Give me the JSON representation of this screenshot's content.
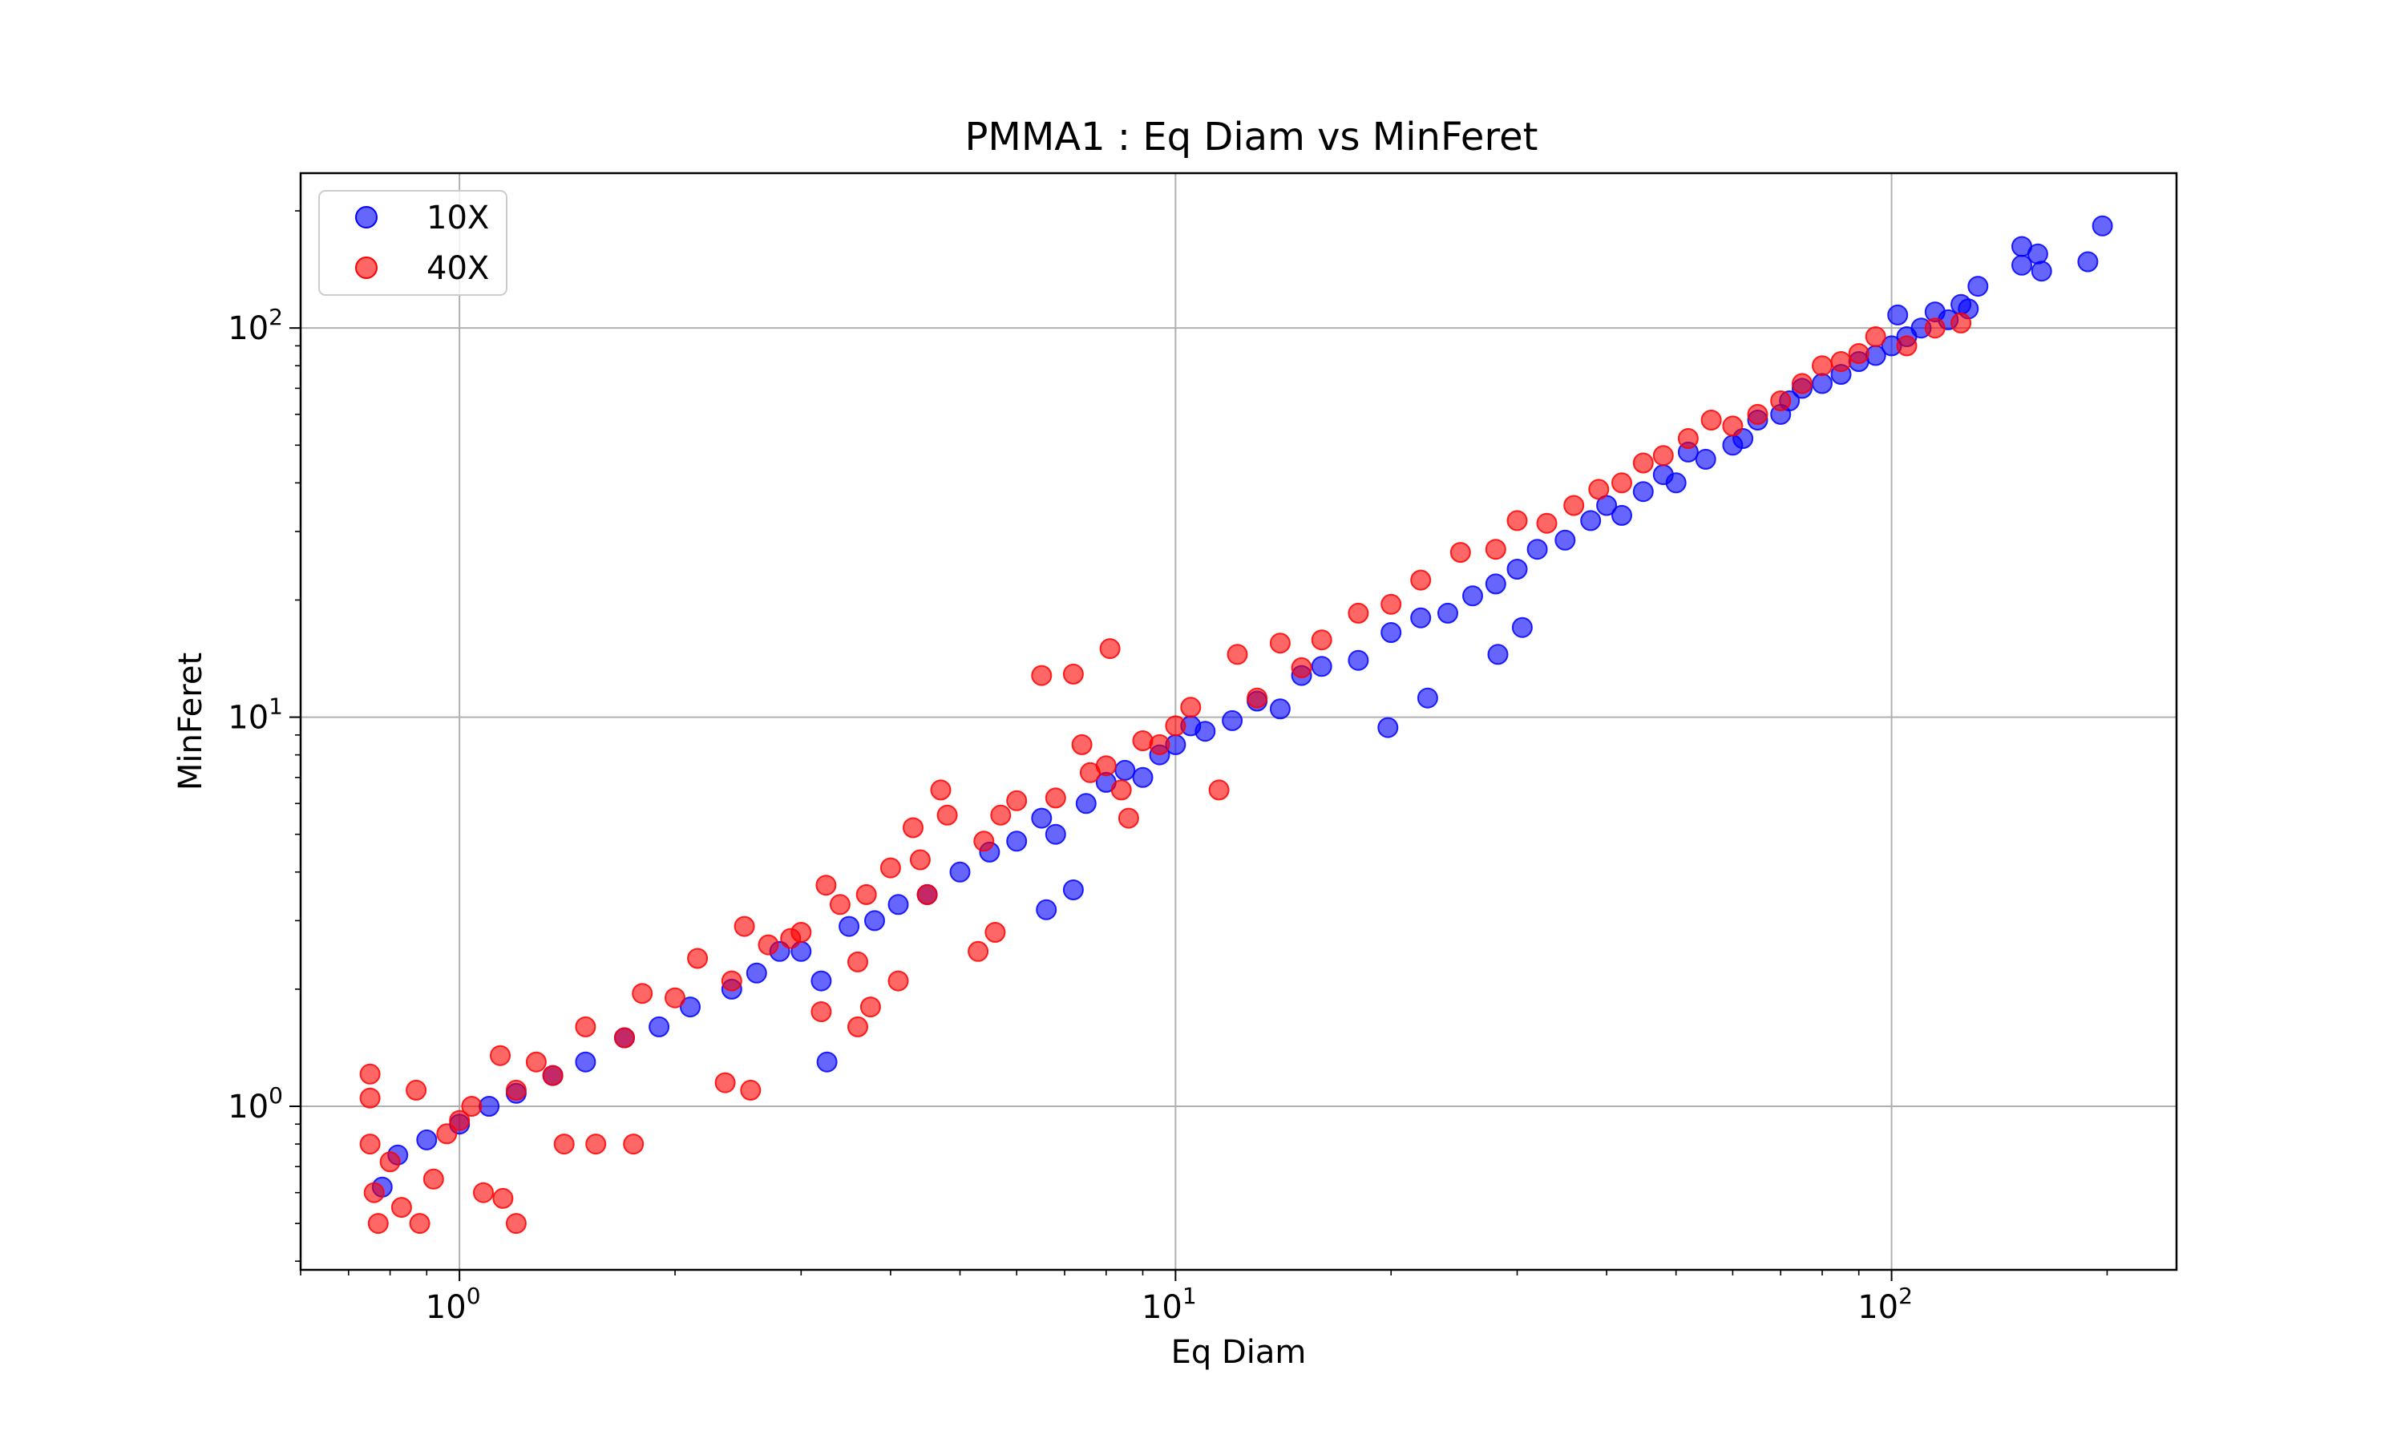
{
  "chart_data": {
    "type": "scatter",
    "title": "PMMA1 : Eq Diam vs MinFeret",
    "xlabel": "Eq Diam",
    "ylabel": "MinFeret",
    "xscale": "log",
    "yscale": "log",
    "xlim": [
      0.6,
      250
    ],
    "ylim": [
      0.38,
      250
    ],
    "grid": true,
    "legend_position": "top-left",
    "x_ticks": [
      {
        "value": 1,
        "base": "10",
        "exp": "0"
      },
      {
        "value": 10,
        "base": "10",
        "exp": "1"
      },
      {
        "value": 100,
        "base": "10",
        "exp": "2"
      }
    ],
    "y_ticks": [
      {
        "value": 1,
        "base": "10",
        "exp": "0"
      },
      {
        "value": 10,
        "base": "10",
        "exp": "1"
      },
      {
        "value": 100,
        "base": "10",
        "exp": "2"
      }
    ],
    "series": [
      {
        "name": "10X",
        "color": "#0000ff",
        "points": [
          [
            0.78,
            0.62
          ],
          [
            0.82,
            0.75
          ],
          [
            0.9,
            0.82
          ],
          [
            1.0,
            0.9
          ],
          [
            1.1,
            1.0
          ],
          [
            1.2,
            1.08
          ],
          [
            1.35,
            1.2
          ],
          [
            1.5,
            1.3
          ],
          [
            1.7,
            1.5
          ],
          [
            1.9,
            1.6
          ],
          [
            2.1,
            1.8
          ],
          [
            2.4,
            2.0
          ],
          [
            2.6,
            2.2
          ],
          [
            2.8,
            2.5
          ],
          [
            3.0,
            2.5
          ],
          [
            3.2,
            2.1
          ],
          [
            3.26,
            1.3
          ],
          [
            3.5,
            2.9
          ],
          [
            3.8,
            3.0
          ],
          [
            4.1,
            3.3
          ],
          [
            4.5,
            3.5
          ],
          [
            5.0,
            4.0
          ],
          [
            5.5,
            4.5
          ],
          [
            6.0,
            4.8
          ],
          [
            6.5,
            5.5
          ],
          [
            6.6,
            3.2
          ],
          [
            6.8,
            5.0
          ],
          [
            7.2,
            3.6
          ],
          [
            7.5,
            6.0
          ],
          [
            8.0,
            6.8
          ],
          [
            8.5,
            7.3
          ],
          [
            9.0,
            7.0
          ],
          [
            9.5,
            8.0
          ],
          [
            10.0,
            8.5
          ],
          [
            10.5,
            9.5
          ],
          [
            11.0,
            9.2
          ],
          [
            12.0,
            9.8
          ],
          [
            13.0,
            11.0
          ],
          [
            14.0,
            10.5
          ],
          [
            15.0,
            12.8
          ],
          [
            16.0,
            13.5
          ],
          [
            18.0,
            14.0
          ],
          [
            19.8,
            9.4
          ],
          [
            20.0,
            16.5
          ],
          [
            22.0,
            18.0
          ],
          [
            22.5,
            11.2
          ],
          [
            24.0,
            18.5
          ],
          [
            26.0,
            20.5
          ],
          [
            28.0,
            22.0
          ],
          [
            28.2,
            14.5
          ],
          [
            30.0,
            24.0
          ],
          [
            30.5,
            17.0
          ],
          [
            32.0,
            27.0
          ],
          [
            35.0,
            28.5
          ],
          [
            38.0,
            32.0
          ],
          [
            40.0,
            35.0
          ],
          [
            42.0,
            33.0
          ],
          [
            45.0,
            38.0
          ],
          [
            48.0,
            42.0
          ],
          [
            50.0,
            40.0
          ],
          [
            52.0,
            48.0
          ],
          [
            55.0,
            46.0
          ],
          [
            60.0,
            50.0
          ],
          [
            62.0,
            52.0
          ],
          [
            65.0,
            58.0
          ],
          [
            70.0,
            60.0
          ],
          [
            72.0,
            65.0
          ],
          [
            75.0,
            70.0
          ],
          [
            80.0,
            72.0
          ],
          [
            85.0,
            76.0
          ],
          [
            90.0,
            82.0
          ],
          [
            95.0,
            85.0
          ],
          [
            100.0,
            90.0
          ],
          [
            102.0,
            108.0
          ],
          [
            105.0,
            95.0
          ],
          [
            110.0,
            100.0
          ],
          [
            115.0,
            110.0
          ],
          [
            120.0,
            105.0
          ],
          [
            125.0,
            115.0
          ],
          [
            128.0,
            112.0
          ],
          [
            132.0,
            128.0
          ],
          [
            152.0,
            162.0
          ],
          [
            152.0,
            145.0
          ],
          [
            160.0,
            155.0
          ],
          [
            162.0,
            140.0
          ],
          [
            188.0,
            148.0
          ],
          [
            197.0,
            183.0
          ]
        ]
      },
      {
        "name": "40X",
        "color": "#ff0000",
        "points": [
          [
            0.75,
            1.21
          ],
          [
            0.75,
            1.05
          ],
          [
            0.75,
            0.8
          ],
          [
            0.76,
            0.6
          ],
          [
            0.77,
            0.5
          ],
          [
            0.8,
            0.72
          ],
          [
            0.83,
            0.55
          ],
          [
            0.87,
            1.1
          ],
          [
            0.88,
            0.5
          ],
          [
            0.92,
            0.65
          ],
          [
            0.96,
            0.85
          ],
          [
            1.0,
            0.92
          ],
          [
            1.04,
            1.0
          ],
          [
            1.08,
            0.6
          ],
          [
            1.14,
            1.35
          ],
          [
            1.15,
            0.58
          ],
          [
            1.2,
            1.1
          ],
          [
            1.2,
            0.5
          ],
          [
            1.28,
            1.3
          ],
          [
            1.35,
            1.2
          ],
          [
            1.4,
            0.8
          ],
          [
            1.5,
            1.6
          ],
          [
            1.55,
            0.8
          ],
          [
            1.7,
            1.5
          ],
          [
            1.75,
            0.8
          ],
          [
            1.8,
            1.95
          ],
          [
            2.0,
            1.9
          ],
          [
            2.15,
            2.4
          ],
          [
            2.35,
            1.15
          ],
          [
            2.4,
            2.1
          ],
          [
            2.5,
            2.9
          ],
          [
            2.55,
            1.1
          ],
          [
            2.7,
            2.6
          ],
          [
            2.9,
            2.7
          ],
          [
            3.0,
            2.8
          ],
          [
            3.2,
            1.75
          ],
          [
            3.25,
            3.7
          ],
          [
            3.4,
            3.3
          ],
          [
            3.6,
            1.6
          ],
          [
            3.6,
            2.35
          ],
          [
            3.7,
            3.5
          ],
          [
            3.75,
            1.8
          ],
          [
            4.0,
            4.1
          ],
          [
            4.1,
            2.1
          ],
          [
            4.3,
            5.2
          ],
          [
            4.4,
            4.3
          ],
          [
            4.5,
            3.5
          ],
          [
            4.7,
            6.5
          ],
          [
            4.8,
            5.6
          ],
          [
            5.3,
            2.5
          ],
          [
            5.4,
            4.8
          ],
          [
            5.6,
            2.8
          ],
          [
            5.7,
            5.6
          ],
          [
            6.0,
            6.1
          ],
          [
            6.5,
            12.8
          ],
          [
            6.8,
            6.2
          ],
          [
            7.2,
            12.9
          ],
          [
            7.4,
            8.5
          ],
          [
            7.6,
            7.2
          ],
          [
            8.0,
            7.5
          ],
          [
            8.1,
            15.0
          ],
          [
            8.4,
            6.5
          ],
          [
            8.6,
            5.5
          ],
          [
            9.0,
            8.7
          ],
          [
            9.5,
            8.5
          ],
          [
            10.0,
            9.5
          ],
          [
            10.5,
            10.6
          ],
          [
            11.5,
            6.5
          ],
          [
            12.2,
            14.5
          ],
          [
            13.0,
            11.2
          ],
          [
            14.0,
            15.5
          ],
          [
            15.0,
            13.4
          ],
          [
            16.0,
            15.8
          ],
          [
            18.0,
            18.5
          ],
          [
            20.0,
            19.5
          ],
          [
            22.0,
            22.5
          ],
          [
            25.0,
            26.5
          ],
          [
            28.0,
            27.0
          ],
          [
            30.0,
            32.0
          ],
          [
            33.0,
            31.5
          ],
          [
            36.0,
            35.0
          ],
          [
            39.0,
            38.5
          ],
          [
            42.0,
            40.0
          ],
          [
            45.0,
            45.0
          ],
          [
            48.0,
            47.0
          ],
          [
            52.0,
            52.0
          ],
          [
            56.0,
            58.0
          ],
          [
            60.0,
            56.0
          ],
          [
            65.0,
            60.0
          ],
          [
            70.0,
            65.0
          ],
          [
            75.0,
            72.0
          ],
          [
            80.0,
            80.0
          ],
          [
            85.0,
            82.0
          ],
          [
            90.0,
            86.0
          ],
          [
            95.0,
            95.0
          ],
          [
            105.0,
            90.0
          ],
          [
            115.0,
            100.0
          ],
          [
            125.0,
            103.0
          ]
        ]
      }
    ]
  }
}
